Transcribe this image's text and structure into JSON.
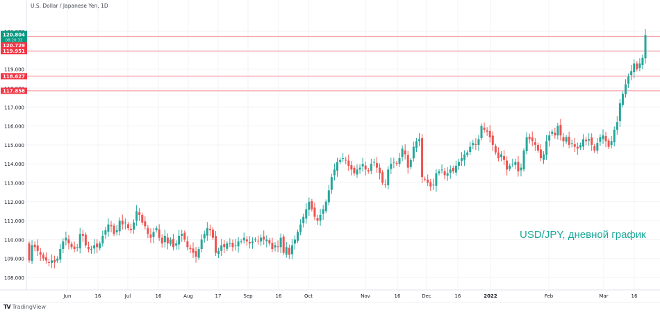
{
  "header": {
    "symbol_title": "U.S. Dollar / Japanese Yen, 1D"
  },
  "watermark": {
    "text": "USD/JPY, дневной график",
    "color": "#1aa898"
  },
  "branding": {
    "logo_mark": "TV",
    "logo_text": "TradingView",
    "logo_icon": "tradingview-logo-icon"
  },
  "colors": {
    "up": "#26a69a",
    "down": "#ef5350",
    "level_line": "#f7a1a8",
    "level_label_bg": "#f23645",
    "last_price_bg": "#089981",
    "grid": "#f2f3f5",
    "axis_text": "#131722"
  },
  "price_axis": {
    "ticks": [
      "121.000",
      "119.000",
      "118.000",
      "117.000",
      "116.000",
      "115.000",
      "114.000",
      "113.000",
      "112.000",
      "111.000",
      "110.000",
      "109.000",
      "108.000"
    ],
    "last_price": {
      "value": "120.804",
      "countdown": "08:20:33"
    },
    "level_labels": [
      {
        "value": "120.729"
      },
      {
        "value": "119.951"
      },
      {
        "value": "118.627"
      },
      {
        "value": "117.858"
      }
    ]
  },
  "time_axis": {
    "labels": [
      {
        "text": "Jun",
        "x": 97
      },
      {
        "text": "16",
        "x": 141
      },
      {
        "text": "Jul",
        "x": 184
      },
      {
        "text": "16",
        "x": 228
      },
      {
        "text": "Aug",
        "x": 271
      },
      {
        "text": "17",
        "x": 314
      },
      {
        "text": "Sep",
        "x": 357
      },
      {
        "text": "16",
        "x": 401
      },
      {
        "text": "Oct",
        "x": 444
      },
      {
        "text": "Nov",
        "x": 526
      },
      {
        "text": "16",
        "x": 572
      },
      {
        "text": "Dec",
        "x": 614
      },
      {
        "text": "16",
        "x": 659
      },
      {
        "text": "2022",
        "x": 706,
        "bold": true
      },
      {
        "text": "Feb",
        "x": 790
      },
      {
        "text": "Mar",
        "x": 869
      },
      {
        "text": "16",
        "x": 913
      }
    ]
  },
  "chart_data": {
    "type": "candlestick",
    "title": "U.S. Dollar / Japanese Yen, 1D",
    "subtitle": "USD/JPY, дневной график",
    "xlabel": "",
    "ylabel": "",
    "ylim": [
      107.5,
      121.3
    ],
    "grid": true,
    "price_axis_position": "left",
    "x_range": [
      "2021-05-21",
      "2022-03-22"
    ],
    "horizontal_levels": [
      120.729,
      119.951,
      118.627,
      117.858
    ],
    "last_price": 120.804,
    "closes": [
      108.9,
      109.7,
      109.6,
      109.4,
      109.2,
      109.0,
      108.9,
      108.8,
      108.9,
      108.8,
      109.0,
      109.5,
      109.9,
      110.1,
      109.8,
      109.6,
      109.5,
      109.6,
      110.3,
      110.2,
      109.7,
      109.5,
      109.5,
      109.7,
      109.6,
      109.8,
      110.2,
      110.5,
      110.8,
      110.7,
      110.3,
      110.5,
      111.0,
      110.8,
      110.9,
      110.6,
      110.5,
      110.9,
      111.5,
      111.3,
      110.9,
      110.7,
      110.3,
      110.1,
      110.4,
      110.6,
      110.1,
      109.8,
      110.2,
      109.8,
      110.0,
      109.6,
      109.8,
      110.2,
      110.3,
      110.0,
      109.6,
      109.5,
      109.3,
      109.1,
      109.5,
      110.0,
      110.3,
      110.6,
      110.5,
      110.1,
      109.3,
      109.4,
      109.7,
      109.6,
      109.8,
      109.8,
      109.6,
      109.7,
      109.9,
      109.9,
      110.1,
      109.9,
      109.8,
      109.9,
      110.0,
      109.9,
      110.1,
      110.0,
      110.0,
      109.8,
      109.5,
      109.7,
      109.6,
      110.1,
      109.3,
      109.6,
      109.2,
      109.7,
      110.0,
      110.4,
      110.8,
      111.2,
      111.6,
      112.0,
      111.6,
      111.2,
      111.0,
      111.3,
      111.6,
      112.0,
      112.6,
      113.3,
      113.7,
      114.1,
      114.2,
      114.3,
      114.2,
      113.9,
      113.7,
      113.5,
      113.7,
      113.8,
      114.0,
      113.7,
      113.6,
      114.0,
      114.1,
      113.8,
      113.5,
      113.0,
      112.9,
      113.7,
      114.0,
      114.1,
      114.0,
      114.3,
      114.8,
      114.5,
      113.8,
      114.2,
      114.9,
      115.2,
      115.3,
      113.3,
      113.2,
      113.0,
      112.8,
      112.9,
      113.5,
      113.6,
      113.7,
      113.4,
      113.5,
      113.7,
      113.6,
      113.9,
      114.1,
      114.3,
      114.5,
      114.6,
      114.9,
      115.1,
      115.0,
      115.3,
      116.0,
      115.8,
      115.7,
      115.4,
      115.0,
      114.6,
      114.3,
      114.5,
      114.2,
      113.7,
      113.9,
      114.0,
      114.1,
      113.6,
      113.8,
      114.7,
      115.4,
      115.3,
      115.2,
      115.0,
      114.7,
      114.3,
      114.5,
      115.2,
      115.5,
      115.7,
      115.5,
      116.0,
      115.5,
      115.2,
      115.4,
      115.0,
      115.1,
      114.9,
      114.8,
      115.0,
      115.3,
      115.2,
      115.3,
      115.0,
      114.7,
      115.1,
      115.4,
      115.5,
      115.2,
      114.9,
      115.2,
      115.8,
      116.2,
      117.2,
      117.7,
      118.2,
      118.6,
      118.9,
      119.3,
      119.0,
      119.3,
      119.6,
      120.8
    ]
  }
}
